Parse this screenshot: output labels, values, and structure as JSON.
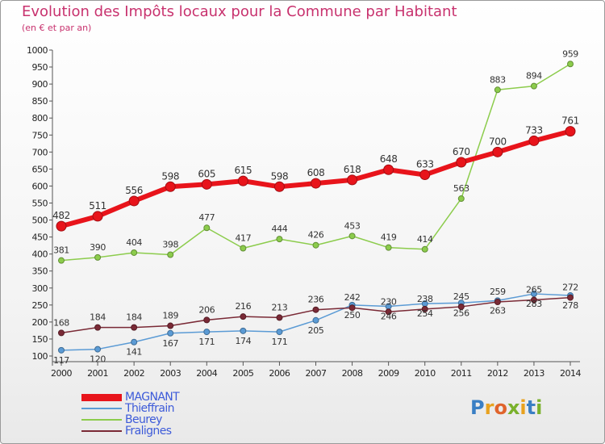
{
  "header": {
    "title": "Evolution des Impôts locaux pour la Commune par Habitant",
    "subtitle": "(en € et par an)"
  },
  "logo": {
    "text": "Proxiti",
    "letters": [
      {
        "ch": "P",
        "color": "#3a7fc4"
      },
      {
        "ch": "r",
        "color": "#e8a21f"
      },
      {
        "ch": "o",
        "color": "#e0642c"
      },
      {
        "ch": "x",
        "color": "#7ab12c"
      },
      {
        "ch": "i",
        "color": "#e8a21f"
      },
      {
        "ch": "t",
        "color": "#3a7fc4"
      },
      {
        "ch": "i",
        "color": "#7ab12c"
      }
    ]
  },
  "chart_data": {
    "type": "line",
    "x": [
      2000,
      2001,
      2002,
      2003,
      2004,
      2005,
      2006,
      2007,
      2008,
      2009,
      2010,
      2011,
      2012,
      2013,
      2014
    ],
    "ylim": [
      100,
      1000
    ],
    "yticks": [
      100,
      150,
      200,
      250,
      300,
      350,
      400,
      450,
      500,
      550,
      600,
      650,
      700,
      750,
      800,
      850,
      900,
      950,
      1000
    ],
    "grid": false,
    "legend_position": "bottom-left",
    "series": [
      {
        "name": "MAGNANT",
        "color": "#e8141b",
        "values": [
          482,
          511,
          556,
          598,
          605,
          615,
          598,
          608,
          618,
          648,
          633,
          670,
          700,
          733,
          761
        ]
      },
      {
        "name": "Thieffrain",
        "color": "#5b9bd5",
        "values": [
          117,
          120,
          141,
          167,
          171,
          174,
          171,
          205,
          250,
          246,
          254,
          256,
          263,
          283,
          278
        ]
      },
      {
        "name": "Beurey",
        "color": "#8ccc4c",
        "values": [
          381,
          390,
          404,
          398,
          477,
          417,
          444,
          426,
          453,
          419,
          414,
          563,
          883,
          894,
          959
        ]
      },
      {
        "name": "Fralignes",
        "color": "#7a2a36",
        "values": [
          168,
          184,
          184,
          189,
          206,
          216,
          213,
          236,
          242,
          230,
          238,
          245,
          259,
          265,
          272
        ]
      }
    ]
  }
}
